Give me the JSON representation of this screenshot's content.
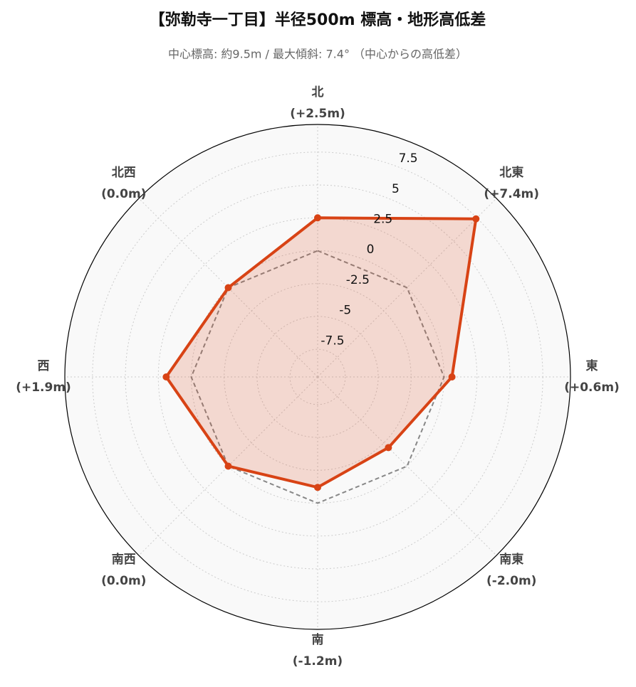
{
  "chart_data": {
    "type": "radar",
    "title": "【弥勒寺一丁目】半径500m 標高・地形高低差",
    "subtitle": "中心標高: 約9.5m / 最大傾斜: 7.4° （中心からの高低差）",
    "categories": [
      "北",
      "北東",
      "東",
      "南東",
      "南",
      "南西",
      "西",
      "北西"
    ],
    "series": [
      {
        "color": "#d84315",
        "values": [
          2.5,
          7.4,
          0.6,
          -2.0,
          -1.2,
          0.0,
          1.9,
          0.0
        ],
        "value_labels": [
          "(+2.5m)",
          "(+7.4m)",
          "(+0.6m)",
          "(-2.0m)",
          "(-1.2m)",
          "(0.0m)",
          "(+1.9m)",
          "(0.0m)"
        ]
      },
      {
        "color": "#888888",
        "values": [
          0,
          0,
          0,
          0,
          0,
          0,
          0,
          0
        ]
      }
    ],
    "ylim": [
      -9.6,
      9.6
    ],
    "yticks": [
      -7.5,
      -5.0,
      -2.5,
      0.0,
      2.5,
      5.0,
      7.5
    ],
    "grid": true
  }
}
